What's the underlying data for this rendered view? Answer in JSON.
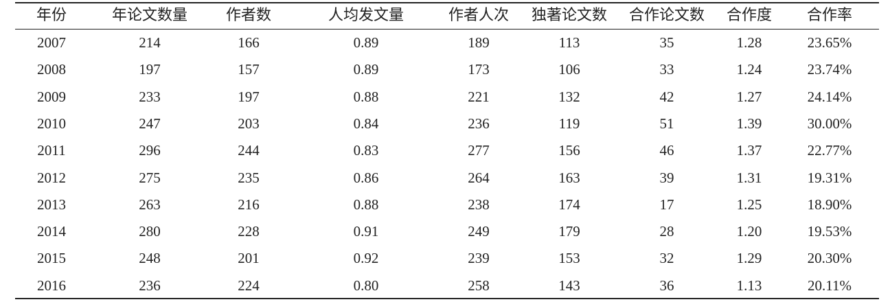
{
  "table": {
    "header": [
      "年份",
      "年论文数量",
      "作者数",
      "人均发文量",
      "作者人次",
      "独著论文数",
      "合作论文数",
      "合作度",
      "合作率"
    ],
    "rows": [
      [
        "2007",
        "214",
        "166",
        "0.89",
        "189",
        "113",
        "35",
        "1.28",
        "23.65%"
      ],
      [
        "2008",
        "197",
        "157",
        "0.89",
        "173",
        "106",
        "33",
        "1.24",
        "23.74%"
      ],
      [
        "2009",
        "233",
        "197",
        "0.88",
        "221",
        "132",
        "42",
        "1.27",
        "24.14%"
      ],
      [
        "2010",
        "247",
        "203",
        "0.84",
        "236",
        "119",
        "51",
        "1.39",
        "30.00%"
      ],
      [
        "2011",
        "296",
        "244",
        "0.83",
        "277",
        "156",
        "46",
        "1.37",
        "22.77%"
      ],
      [
        "2012",
        "275",
        "235",
        "0.86",
        "264",
        "163",
        "39",
        "1.31",
        "19.31%"
      ],
      [
        "2013",
        "263",
        "216",
        "0.88",
        "238",
        "174",
        "17",
        "1.25",
        "18.90%"
      ],
      [
        "2014",
        "280",
        "228",
        "0.91",
        "249",
        "179",
        "28",
        "1.20",
        "19.53%"
      ],
      [
        "2015",
        "248",
        "201",
        "0.92",
        "239",
        "153",
        "32",
        "1.29",
        "20.30%"
      ],
      [
        "2016",
        "236",
        "224",
        "0.80",
        "258",
        "143",
        "36",
        "1.13",
        "20.11%"
      ]
    ]
  }
}
